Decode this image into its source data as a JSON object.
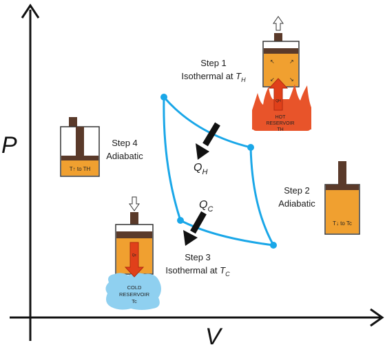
{
  "axes": {
    "y_label": "P",
    "x_label": "V"
  },
  "steps": {
    "step1": {
      "line1": "Step 1",
      "line2": "Isothermal at ",
      "sym": "T",
      "sub": "H"
    },
    "step2": {
      "line1": "Step 2",
      "line2": "Adiabatic"
    },
    "step3": {
      "line1": "Step 3",
      "line2": "Isothermal at ",
      "sym": "T",
      "sub": "C"
    },
    "step4": {
      "line1": "Step 4",
      "line2": "Adiabatic"
    }
  },
  "heat": {
    "qh": {
      "sym": "Q",
      "sub": "H"
    },
    "qc": {
      "sym": "Q",
      "sub": "C"
    }
  },
  "piston_step4": {
    "text": "T↑ to TH"
  },
  "piston_step2": {
    "text": "T↓ to Tc"
  },
  "piston_step3": {
    "arrow_label": "Qc"
  },
  "piston_step1": {
    "arrow_label": "QH"
  },
  "hot_reservoir": {
    "line1": "HOT",
    "line2": "RESERVOIR",
    "line3": "TH"
  },
  "cold_reservoir": {
    "line1": "COLD",
    "line2": "RESERVOIR",
    "line3": "Tc"
  },
  "colors": {
    "cycle": "#1aa7e8",
    "gas": "#f0a030",
    "piston": "#5a3a2a",
    "flame": "#e8542a",
    "ice": "#8fd0f0",
    "arrow_red": "#e0401a"
  }
}
